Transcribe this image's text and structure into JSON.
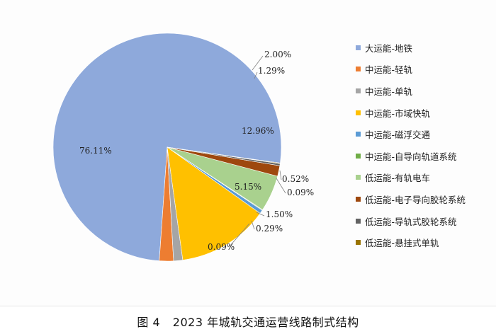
{
  "chart_data": {
    "type": "pie",
    "slices": [
      {
        "name": "大运能-地铁",
        "value": 76.11,
        "label": "76.11%",
        "color": "#8EA9DB"
      },
      {
        "name": "中运能-轻轨",
        "value": 2.0,
        "label": "2.00%",
        "color": "#ED7D31"
      },
      {
        "name": "中运能-单轨",
        "value": 1.29,
        "label": "1.29%",
        "color": "#A5A5A5"
      },
      {
        "name": "中运能-市域快轨",
        "value": 12.96,
        "label": "12.96%",
        "color": "#FFC000"
      },
      {
        "name": "中运能-磁浮交通",
        "value": 0.52,
        "label": "0.52%",
        "color": "#5B9BD5"
      },
      {
        "name": "中运能-自导向轨道系统",
        "value": 0.09,
        "label": "0.09%",
        "color": "#70AD47"
      },
      {
        "name": "低运能-有轨电车",
        "value": 5.15,
        "label": "5.15%",
        "color": "#A9D18E"
      },
      {
        "name": "低运能-电子导向胶轮系统",
        "value": 1.5,
        "label": "1.50%",
        "color": "#9E480E"
      },
      {
        "name": "低运能-导轨式胶轮系统",
        "value": 0.29,
        "label": "0.29%",
        "color": "#636363"
      },
      {
        "name": "低运能-悬挂式单轨",
        "value": 0.09,
        "label": "0.09%",
        "color": "#997300"
      }
    ],
    "legend_position": "right"
  },
  "caption": {
    "figure": "图 4",
    "text": "2023 年城轨交通运营线路制式结构"
  }
}
